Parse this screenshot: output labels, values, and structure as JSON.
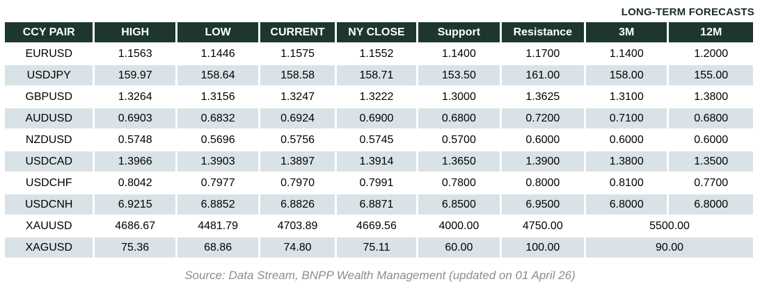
{
  "title": "LONG-TERM FORECASTS",
  "source_note": "Source: Data Stream, BNPP Wealth Management (updated on 01 April 26)",
  "colors": {
    "header_bg": "#1E3630",
    "header_text": "#FFFFFF",
    "alt_row_bg": "#D9E2E7",
    "title_text": "#1C2B27",
    "source_text": "#8A8D90"
  },
  "chart_data": {
    "type": "table",
    "title": "LONG-TERM FORECASTS",
    "columns": [
      "CCY PAIR",
      "HIGH",
      "LOW",
      "CURRENT",
      "NY CLOSE",
      "Support",
      "Resistance",
      "3M",
      "12M"
    ],
    "rows": [
      {
        "cells": [
          "EURUSD",
          "1.1563",
          "1.1446",
          "1.1575",
          "1.1552",
          "1.1400",
          "1.1700",
          "1.1400",
          "1.2000"
        ]
      },
      {
        "cells": [
          "USDJPY",
          "159.97",
          "158.64",
          "158.58",
          "158.71",
          "153.50",
          "161.00",
          "158.00",
          "155.00"
        ]
      },
      {
        "cells": [
          "GBPUSD",
          "1.3264",
          "1.3156",
          "1.3247",
          "1.3222",
          "1.3000",
          "1.3625",
          "1.3100",
          "1.3800"
        ]
      },
      {
        "cells": [
          "AUDUSD",
          "0.6903",
          "0.6832",
          "0.6924",
          "0.6900",
          "0.6800",
          "0.7200",
          "0.7100",
          "0.6800"
        ]
      },
      {
        "cells": [
          "NZDUSD",
          "0.5748",
          "0.5696",
          "0.5756",
          "0.5745",
          "0.5700",
          "0.6000",
          "0.6000",
          "0.6000"
        ]
      },
      {
        "cells": [
          "USDCAD",
          "1.3966",
          "1.3903",
          "1.3897",
          "1.3914",
          "1.3650",
          "1.3900",
          "1.3800",
          "1.3500"
        ]
      },
      {
        "cells": [
          "USDCHF",
          "0.8042",
          "0.7977",
          "0.7970",
          "0.7991",
          "0.7800",
          "0.8000",
          "0.8100",
          "0.7700"
        ]
      },
      {
        "cells": [
          "USDCNH",
          "6.9215",
          "6.8852",
          "6.8826",
          "6.8871",
          "6.8500",
          "6.9500",
          "6.8000",
          "6.8000"
        ]
      },
      {
        "cells": [
          "XAUUSD",
          "4686.67",
          "4481.79",
          "4703.89",
          "4669.56",
          "4000.00",
          "4750.00",
          "5500.00"
        ],
        "merge_last_two": true
      },
      {
        "cells": [
          "XAGUSD",
          "75.36",
          "68.86",
          "74.80",
          "75.11",
          "60.00",
          "100.00",
          "90.00"
        ],
        "merge_last_two": true
      }
    ]
  }
}
